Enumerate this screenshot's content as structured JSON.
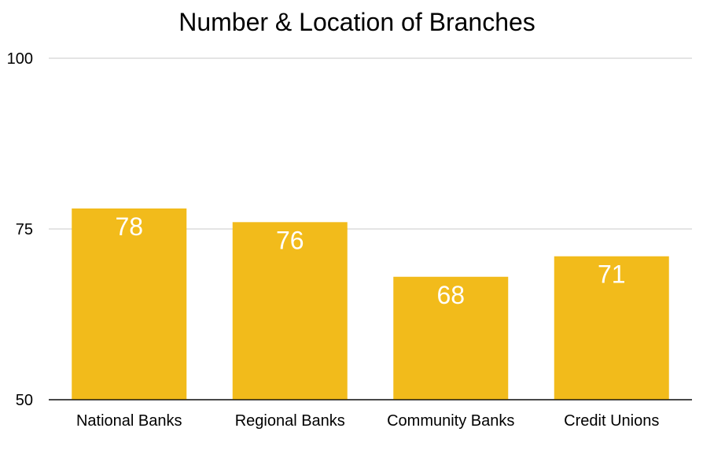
{
  "chart_data": {
    "type": "bar",
    "title": "Number & Location of Branches",
    "categories": [
      "National Banks",
      "Regional Banks",
      "Community Banks",
      "Credit Unions"
    ],
    "values": [
      78,
      76,
      68,
      71
    ],
    "data_labels": [
      "78",
      "76",
      "68",
      "71"
    ],
    "ylim": [
      50,
      100
    ],
    "yticks": [
      50,
      75,
      100
    ],
    "ytick_labels": [
      "50",
      "75",
      "100"
    ],
    "xlabel": "",
    "ylabel": "",
    "grid": true,
    "legend": "none",
    "bar_color": "#F2BB1B",
    "data_label_color": "#FFFFFF",
    "gridline_color": "#C8C8C8",
    "text_color": "#000000"
  }
}
